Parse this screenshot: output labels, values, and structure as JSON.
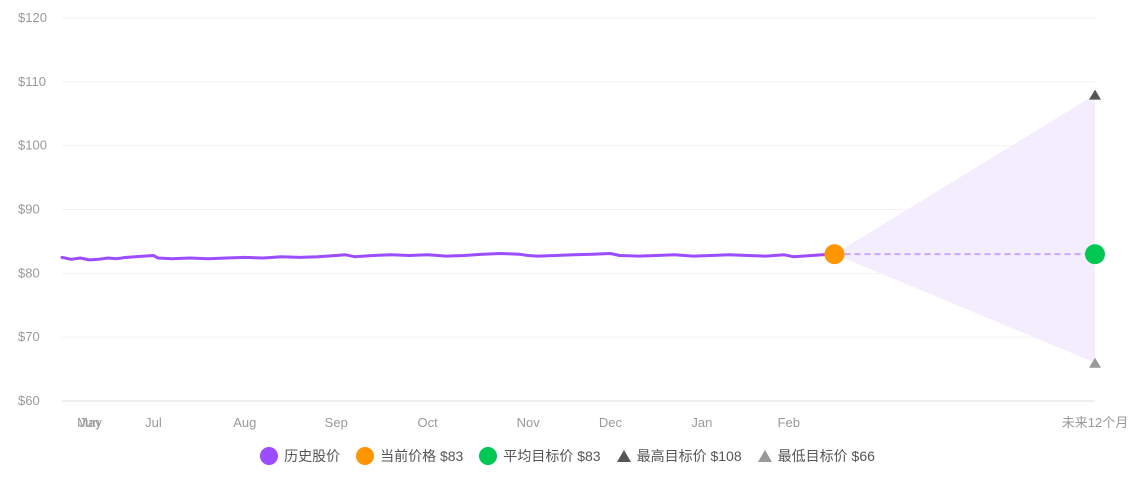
{
  "chart_data": {
    "type": "line",
    "y_ticks": [
      "$120",
      "$110",
      "$100",
      "$90",
      "$80",
      "$70",
      "$60"
    ],
    "y_values": [
      120,
      110,
      100,
      90,
      80,
      70,
      60
    ],
    "ylim": [
      60,
      120
    ],
    "x_ticks": [
      "Jun",
      "May",
      "Jul",
      "Aug",
      "Sep",
      "Oct",
      "Nov",
      "Dec",
      "Jan",
      "Feb",
      "未来12个月"
    ],
    "x_tick_positions": [
      0.3,
      0.3,
      1.0,
      2.0,
      3.0,
      4.0,
      5.1,
      6.0,
      7.0,
      7.95,
      11.3
    ],
    "xlim": [
      0,
      11.3
    ],
    "history": [
      [
        0.0,
        82.5
      ],
      [
        0.1,
        82.2
      ],
      [
        0.2,
        82.4
      ],
      [
        0.3,
        82.1
      ],
      [
        0.4,
        82.2
      ],
      [
        0.5,
        82.4
      ],
      [
        0.6,
        82.3
      ],
      [
        0.7,
        82.5
      ],
      [
        0.8,
        82.6
      ],
      [
        0.9,
        82.7
      ],
      [
        1.0,
        82.8
      ],
      [
        1.05,
        82.4
      ],
      [
        1.2,
        82.3
      ],
      [
        1.4,
        82.4
      ],
      [
        1.6,
        82.3
      ],
      [
        1.8,
        82.4
      ],
      [
        2.0,
        82.5
      ],
      [
        2.2,
        82.4
      ],
      [
        2.4,
        82.6
      ],
      [
        2.6,
        82.5
      ],
      [
        2.8,
        82.6
      ],
      [
        3.0,
        82.8
      ],
      [
        3.1,
        82.9
      ],
      [
        3.2,
        82.6
      ],
      [
        3.4,
        82.8
      ],
      [
        3.6,
        82.9
      ],
      [
        3.8,
        82.8
      ],
      [
        4.0,
        82.9
      ],
      [
        4.2,
        82.7
      ],
      [
        4.4,
        82.8
      ],
      [
        4.6,
        83.0
      ],
      [
        4.8,
        83.1
      ],
      [
        5.0,
        83.0
      ],
      [
        5.1,
        82.8
      ],
      [
        5.2,
        82.7
      ],
      [
        5.4,
        82.8
      ],
      [
        5.6,
        82.9
      ],
      [
        5.8,
        83.0
      ],
      [
        6.0,
        83.1
      ],
      [
        6.1,
        82.8
      ],
      [
        6.3,
        82.7
      ],
      [
        6.5,
        82.8
      ],
      [
        6.7,
        82.9
      ],
      [
        6.9,
        82.7
      ],
      [
        7.1,
        82.8
      ],
      [
        7.3,
        82.9
      ],
      [
        7.5,
        82.8
      ],
      [
        7.7,
        82.7
      ],
      [
        7.9,
        82.9
      ],
      [
        8.0,
        82.6
      ],
      [
        8.2,
        82.8
      ],
      [
        8.4,
        83.0
      ]
    ],
    "current_price": 83,
    "current_x": 8.45,
    "target_x": 11.3,
    "avg_target": 83,
    "high_target": 108,
    "low_target": 66,
    "colors": {
      "history": "#9b4dff",
      "current": "#ff9500",
      "average": "#00c853",
      "high": "#555555",
      "low": "#999999",
      "band": "#f3edfd",
      "dash": "#c9a7ff",
      "grid": "#f2f2f2",
      "axis": "#dddddd"
    },
    "legend": [
      {
        "label": "历史股价",
        "shape": "dot",
        "color": "#9b4dff"
      },
      {
        "label": "当前价格 $83",
        "shape": "dot",
        "color": "#ff9500"
      },
      {
        "label": "平均目标价 $83",
        "shape": "dot",
        "color": "#00c853"
      },
      {
        "label": "最高目标价 $108",
        "shape": "triangle",
        "color": "#555555"
      },
      {
        "label": "最低目标价 $66",
        "shape": "triangle",
        "color": "#999999"
      }
    ]
  }
}
